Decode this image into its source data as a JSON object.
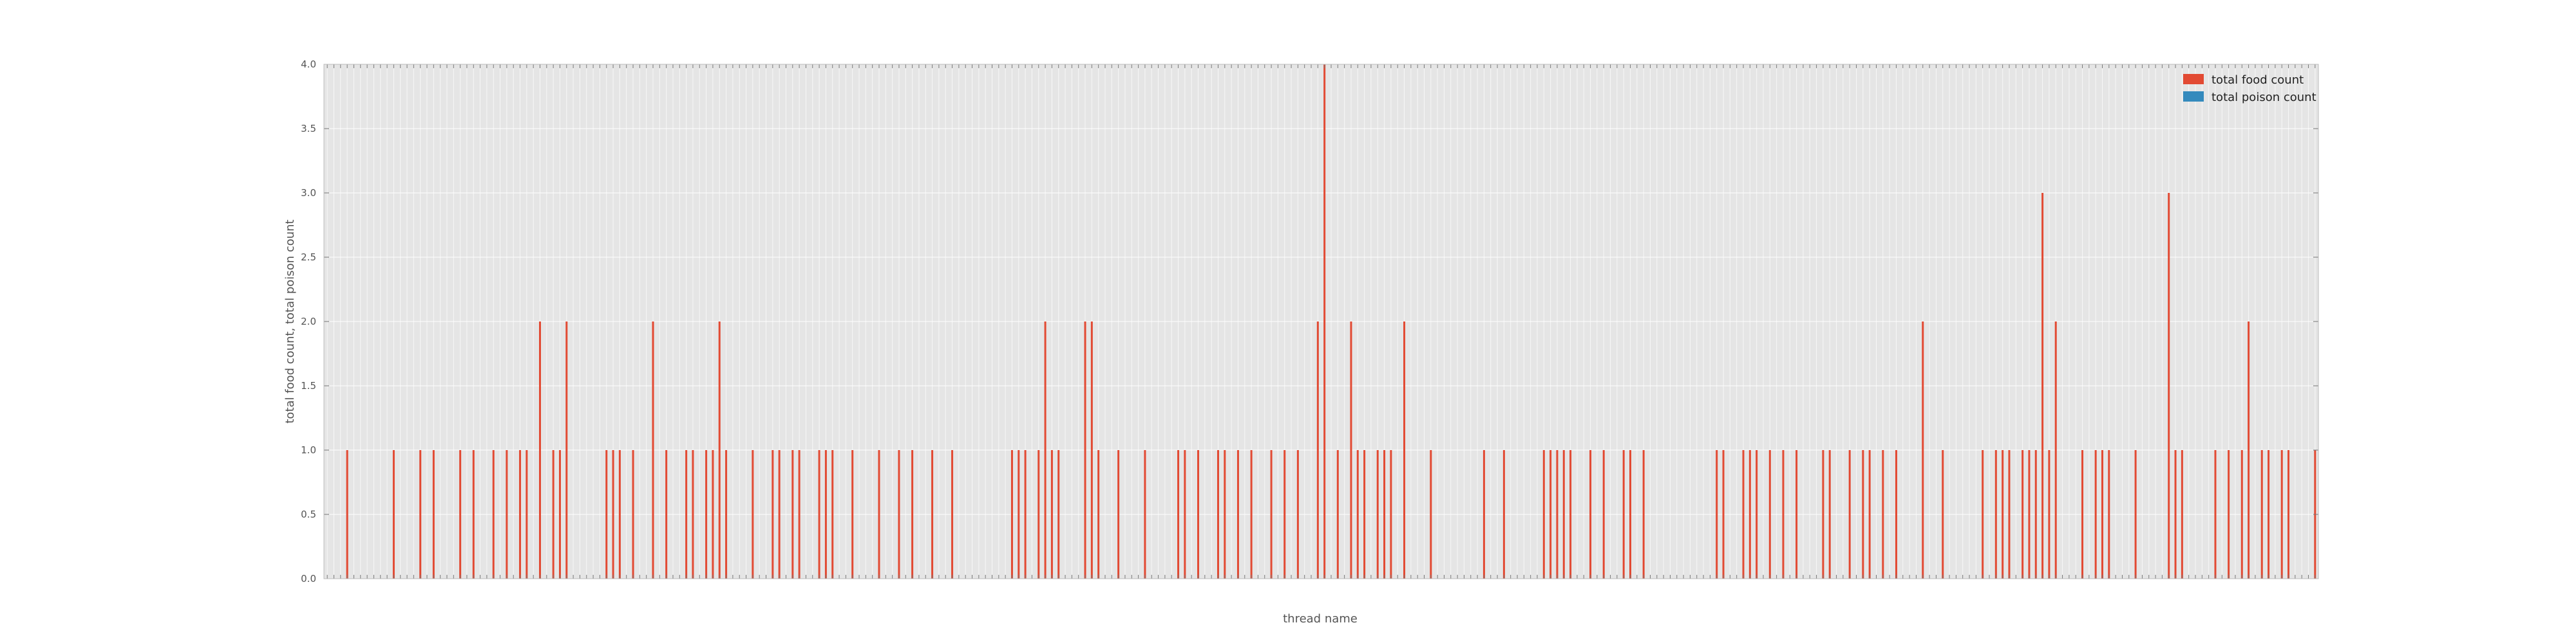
{
  "chart_data": {
    "type": "bar",
    "title": "",
    "xlabel": "thread name",
    "ylabel": "total food count, total poison count",
    "ylim": [
      0,
      4
    ],
    "yticks": [
      "0.0",
      "0.5",
      "1.0",
      "1.5",
      "2.0",
      "2.5",
      "3.0",
      "3.5",
      "4.0"
    ],
    "grid": true,
    "legend_position": "top-right",
    "colors": {
      "food": "#E24A33",
      "poison": "#348ABD",
      "plot_bg": "#E5E5E5",
      "grid": "#FFFFFF",
      "axis_text": "#555555"
    },
    "category_count": 300,
    "categories": [],
    "series": [
      {
        "name": "total food count",
        "points": [
          [
            3,
            1
          ],
          [
            10,
            1
          ],
          [
            14,
            1
          ],
          [
            16,
            1
          ],
          [
            20,
            1
          ],
          [
            22,
            1
          ],
          [
            25,
            1
          ],
          [
            27,
            1
          ],
          [
            29,
            1
          ],
          [
            30,
            1
          ],
          [
            32,
            2
          ],
          [
            34,
            1
          ],
          [
            35,
            1
          ],
          [
            36,
            2
          ],
          [
            42,
            1
          ],
          [
            43,
            1
          ],
          [
            44,
            1
          ],
          [
            46,
            1
          ],
          [
            49,
            2
          ],
          [
            51,
            1
          ],
          [
            54,
            1
          ],
          [
            55,
            1
          ],
          [
            57,
            1
          ],
          [
            58,
            1
          ],
          [
            59,
            2
          ],
          [
            60,
            1
          ],
          [
            64,
            1
          ],
          [
            67,
            1
          ],
          [
            68,
            1
          ],
          [
            70,
            1
          ],
          [
            71,
            1
          ],
          [
            74,
            1
          ],
          [
            75,
            1
          ],
          [
            76,
            1
          ],
          [
            79,
            1
          ],
          [
            83,
            1
          ],
          [
            86,
            1
          ],
          [
            88,
            1
          ],
          [
            91,
            1
          ],
          [
            94,
            1
          ],
          [
            103,
            1
          ],
          [
            104,
            1
          ],
          [
            105,
            1
          ],
          [
            107,
            1
          ],
          [
            108,
            2
          ],
          [
            109,
            1
          ],
          [
            110,
            1
          ],
          [
            114,
            2
          ],
          [
            115,
            2
          ],
          [
            116,
            1
          ],
          [
            119,
            1
          ],
          [
            123,
            1
          ],
          [
            128,
            1
          ],
          [
            129,
            1
          ],
          [
            131,
            1
          ],
          [
            134,
            1
          ],
          [
            135,
            1
          ],
          [
            137,
            1
          ],
          [
            139,
            1
          ],
          [
            142,
            1
          ],
          [
            144,
            1
          ],
          [
            146,
            1
          ],
          [
            149,
            2
          ],
          [
            150,
            4
          ],
          [
            152,
            1
          ],
          [
            154,
            2
          ],
          [
            155,
            1
          ],
          [
            156,
            1
          ],
          [
            158,
            1
          ],
          [
            159,
            1
          ],
          [
            160,
            1
          ],
          [
            162,
            2
          ],
          [
            166,
            1
          ],
          [
            174,
            1
          ],
          [
            177,
            1
          ],
          [
            183,
            1
          ],
          [
            184,
            1
          ],
          [
            185,
            1
          ],
          [
            186,
            1
          ],
          [
            187,
            1
          ],
          [
            190,
            1
          ],
          [
            192,
            1
          ],
          [
            195,
            1
          ],
          [
            196,
            1
          ],
          [
            198,
            1
          ],
          [
            209,
            1
          ],
          [
            210,
            1
          ],
          [
            213,
            1
          ],
          [
            214,
            1
          ],
          [
            215,
            1
          ],
          [
            217,
            1
          ],
          [
            219,
            1
          ],
          [
            221,
            1
          ],
          [
            225,
            1
          ],
          [
            226,
            1
          ],
          [
            229,
            1
          ],
          [
            231,
            1
          ],
          [
            232,
            1
          ],
          [
            234,
            1
          ],
          [
            236,
            1
          ],
          [
            240,
            2
          ],
          [
            243,
            1
          ],
          [
            249,
            1
          ],
          [
            251,
            1
          ],
          [
            252,
            1
          ],
          [
            253,
            1
          ],
          [
            255,
            1
          ],
          [
            256,
            1
          ],
          [
            257,
            1
          ],
          [
            258,
            3
          ],
          [
            259,
            1
          ],
          [
            260,
            2
          ],
          [
            264,
            1
          ],
          [
            266,
            1
          ],
          [
            267,
            1
          ],
          [
            268,
            1
          ],
          [
            272,
            1
          ],
          [
            277,
            3
          ],
          [
            278,
            1
          ],
          [
            279,
            1
          ],
          [
            284,
            1
          ],
          [
            286,
            1
          ],
          [
            288,
            1
          ],
          [
            289,
            2
          ],
          [
            291,
            1
          ],
          [
            292,
            1
          ],
          [
            294,
            1
          ],
          [
            295,
            1
          ],
          [
            299,
            1
          ]
        ]
      },
      {
        "name": "total poison count",
        "points": []
      }
    ]
  }
}
